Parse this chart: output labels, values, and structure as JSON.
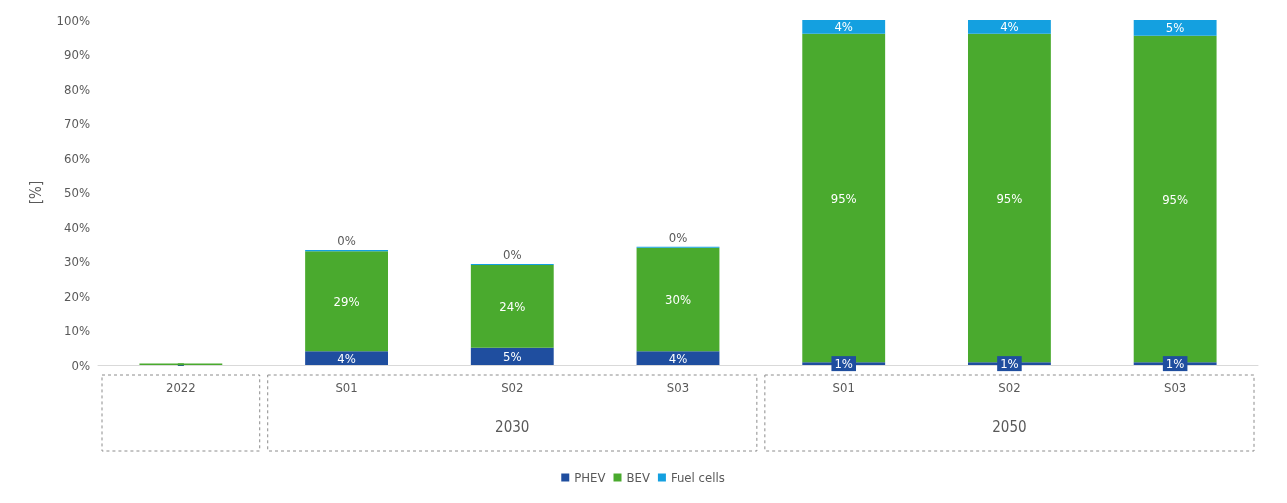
{
  "chart_data": {
    "type": "bar",
    "stacked": true,
    "ylabel": "[%]",
    "categories": [
      "2022",
      "S01",
      "S02",
      "S03",
      "S01",
      "S02",
      "S03"
    ],
    "annotations": [
      "2030",
      "2050"
    ],
    "series": [
      {
        "name": "PHEV",
        "color": "#1f4e9f",
        "values": [
          0,
          4,
          5,
          4,
          0.8,
          0.8,
          0.8
        ],
        "value_labels": [
          null,
          "4%",
          "5%",
          "4%",
          "1%",
          "1%",
          "1%"
        ]
      },
      {
        "name": "BEV",
        "color": "#4aaa2e",
        "values": [
          0.4,
          29,
          24,
          30,
          95.2,
          95.2,
          94.6
        ],
        "value_labels": [
          null,
          "29%",
          "24%",
          "30%",
          "95%",
          "95%",
          "95%"
        ]
      },
      {
        "name": "Fuel cells",
        "color": "#14a0e0",
        "values": [
          0,
          0.3,
          0.3,
          0.3,
          4,
          4,
          4.6
        ],
        "value_labels": [
          null,
          "0%",
          "0%",
          "0%",
          "4%",
          "4%",
          "5%"
        ]
      }
    ],
    "ylim": [
      0,
      100
    ],
    "yticks": [
      {
        "value": 0,
        "label": "0%"
      },
      {
        "value": 10,
        "label": "10%"
      },
      {
        "value": 20,
        "label": "20%"
      },
      {
        "value": 30,
        "label": "30%"
      },
      {
        "value": 40,
        "label": "40%"
      },
      {
        "value": 50,
        "label": "50%"
      },
      {
        "value": 60,
        "label": "60%"
      },
      {
        "value": 70,
        "label": "70%"
      },
      {
        "value": 80,
        "label": "80%"
      },
      {
        "value": 90,
        "label": "90%"
      },
      {
        "value": 100,
        "label": "100%"
      }
    ],
    "legend": "bottom",
    "grid": false
  }
}
